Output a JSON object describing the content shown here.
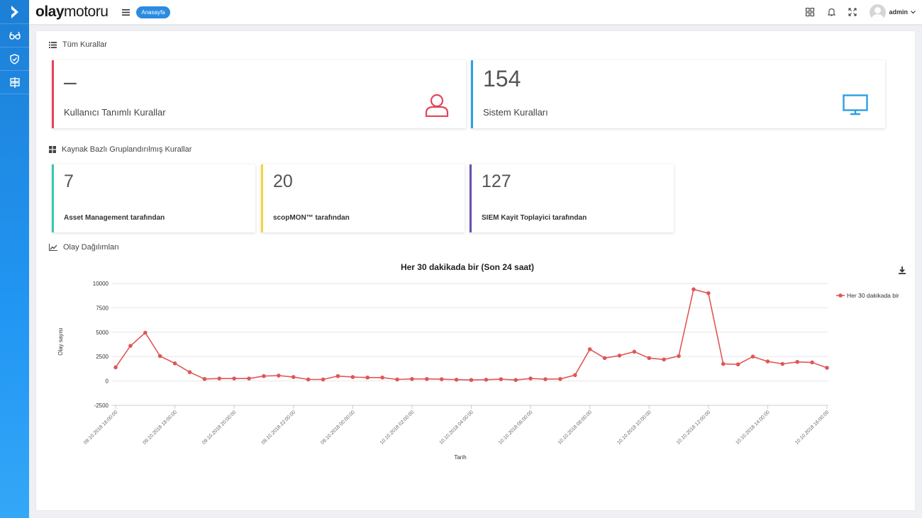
{
  "header": {
    "brand_light": "olay",
    "brand_rest": "motoru",
    "breadcrumb": "Anasayfa",
    "user": "admin"
  },
  "sections": {
    "all_rules": "Tüm Kurallar",
    "grouped_rules": "Kaynak Bazlı Gruplandırılmış Kurallar",
    "distribution": "Olay Dağılımları"
  },
  "cards": {
    "user_rules": {
      "value": "–",
      "label": "Kullanıcı Tanımlı Kurallar",
      "color": "#e8435a"
    },
    "system_rules": {
      "value": "154",
      "label": "Sistem Kuralları",
      "color": "#2a9fe4"
    },
    "asset": {
      "value": "7",
      "label": "Asset Management tarafından",
      "color": "#36c9b0"
    },
    "scopmon": {
      "value": "20",
      "label": "scopMON™ tarafından",
      "color": "#f2d53c"
    },
    "siem": {
      "value": "127",
      "label": "SIEM Kayit Toplayici tarafından",
      "color": "#6a4fb0"
    }
  },
  "chart_data": {
    "type": "line",
    "title": "Her 30 dakikada bir (Son 24 saat)",
    "xlabel": "Tarih",
    "ylabel": "Olay sayısı",
    "ylim": [
      -2500,
      10000
    ],
    "yticks": [
      10000,
      7500,
      5000,
      2500,
      0,
      -2500
    ],
    "legend": "top-right",
    "xtick_labels": [
      "09.10.2018 16:00:00",
      "09.10.2018 18:00:00",
      "09.10.2018 20:00:00",
      "09.10.2018 22:00:00",
      "09.10.2018 00:00:00",
      "10.10.2018 02:00:00",
      "10.10.2018 04:00:00",
      "10.10.2018 06:00:00",
      "10.10.2018 08:00:00",
      "10.10.2018 10:00:00",
      "10.10.2018 12:00:00",
      "10.10.2018 14:00:00",
      "10.10.2018 16:00:00"
    ],
    "series": [
      {
        "name": "Her 30 dakikada bir",
        "color": "#e05656",
        "values": [
          1400,
          3600,
          4950,
          2550,
          1800,
          900,
          200,
          250,
          250,
          250,
          500,
          550,
          400,
          150,
          150,
          500,
          400,
          350,
          350,
          150,
          200,
          200,
          180,
          130,
          100,
          130,
          180,
          100,
          250,
          180,
          200,
          600,
          3250,
          2350,
          2600,
          3000,
          2350,
          2200,
          2550,
          9400,
          9000,
          1750,
          1700,
          2500,
          2000,
          1750,
          1950,
          1900,
          1350
        ]
      }
    ]
  }
}
